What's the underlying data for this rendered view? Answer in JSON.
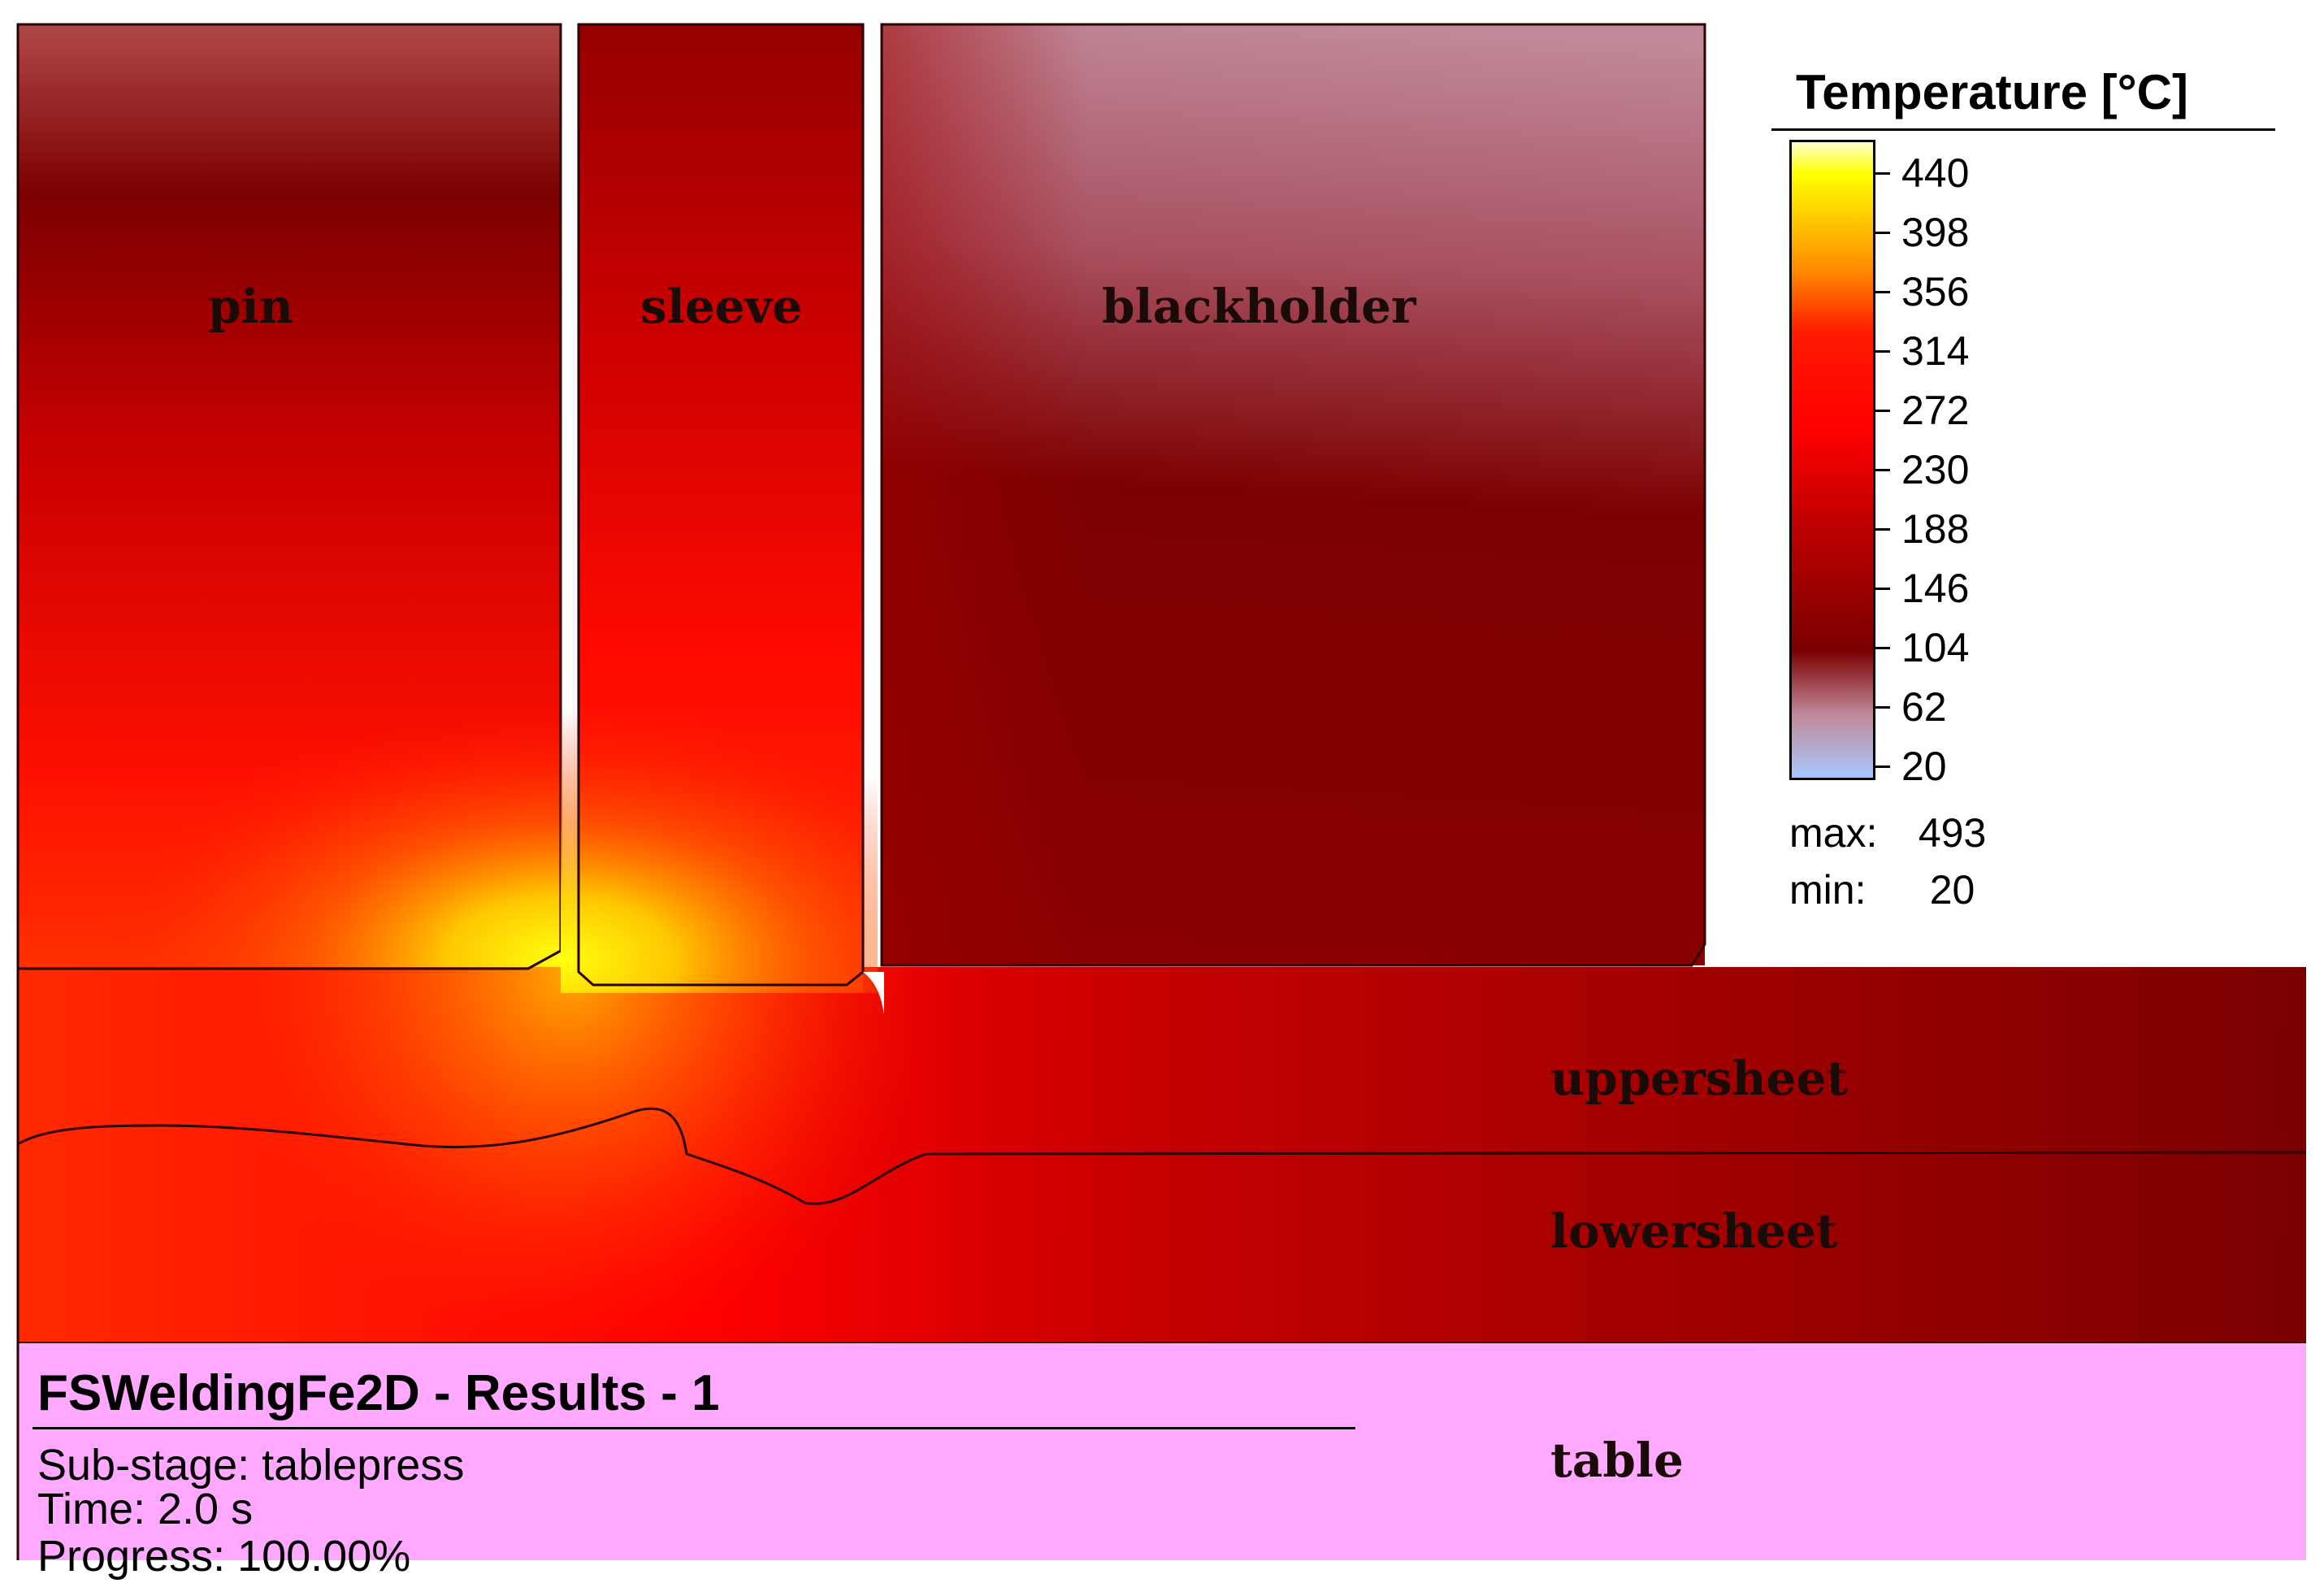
{
  "parts": {
    "pin": "pin",
    "sleeve": "sleeve",
    "blackholder": "blackholder",
    "uppersheet": "uppersheet",
    "lowersheet": "lowersheet",
    "table": "table"
  },
  "legend": {
    "title": "Temperature [°C]",
    "ticks": [
      "440",
      "398",
      "356",
      "314",
      "272",
      "230",
      "188",
      "146",
      "104",
      "62",
      "20"
    ],
    "max_label": "max:",
    "max_value": "493",
    "min_label": "min:",
    "min_value": "20",
    "colors": [
      "#ffffd0",
      "#ffff00",
      "#ff8c00",
      "#ff1a00",
      "#ff0000",
      "#e00000",
      "#b00000",
      "#8b0000",
      "#7a0000",
      "#c08898",
      "#a8c8ff"
    ]
  },
  "info": {
    "title": "FSWeldingFe2D - Results - 1",
    "substage": "Sub-stage: tablepress",
    "time": "Time: 2.0 s",
    "progress": "Progress: 100.00%"
  },
  "colors": {
    "table": "#ffa8ff",
    "hot": "#ffff00",
    "warm": "#ff0000",
    "cool": "#7e0000",
    "ambient": "#c08898"
  }
}
